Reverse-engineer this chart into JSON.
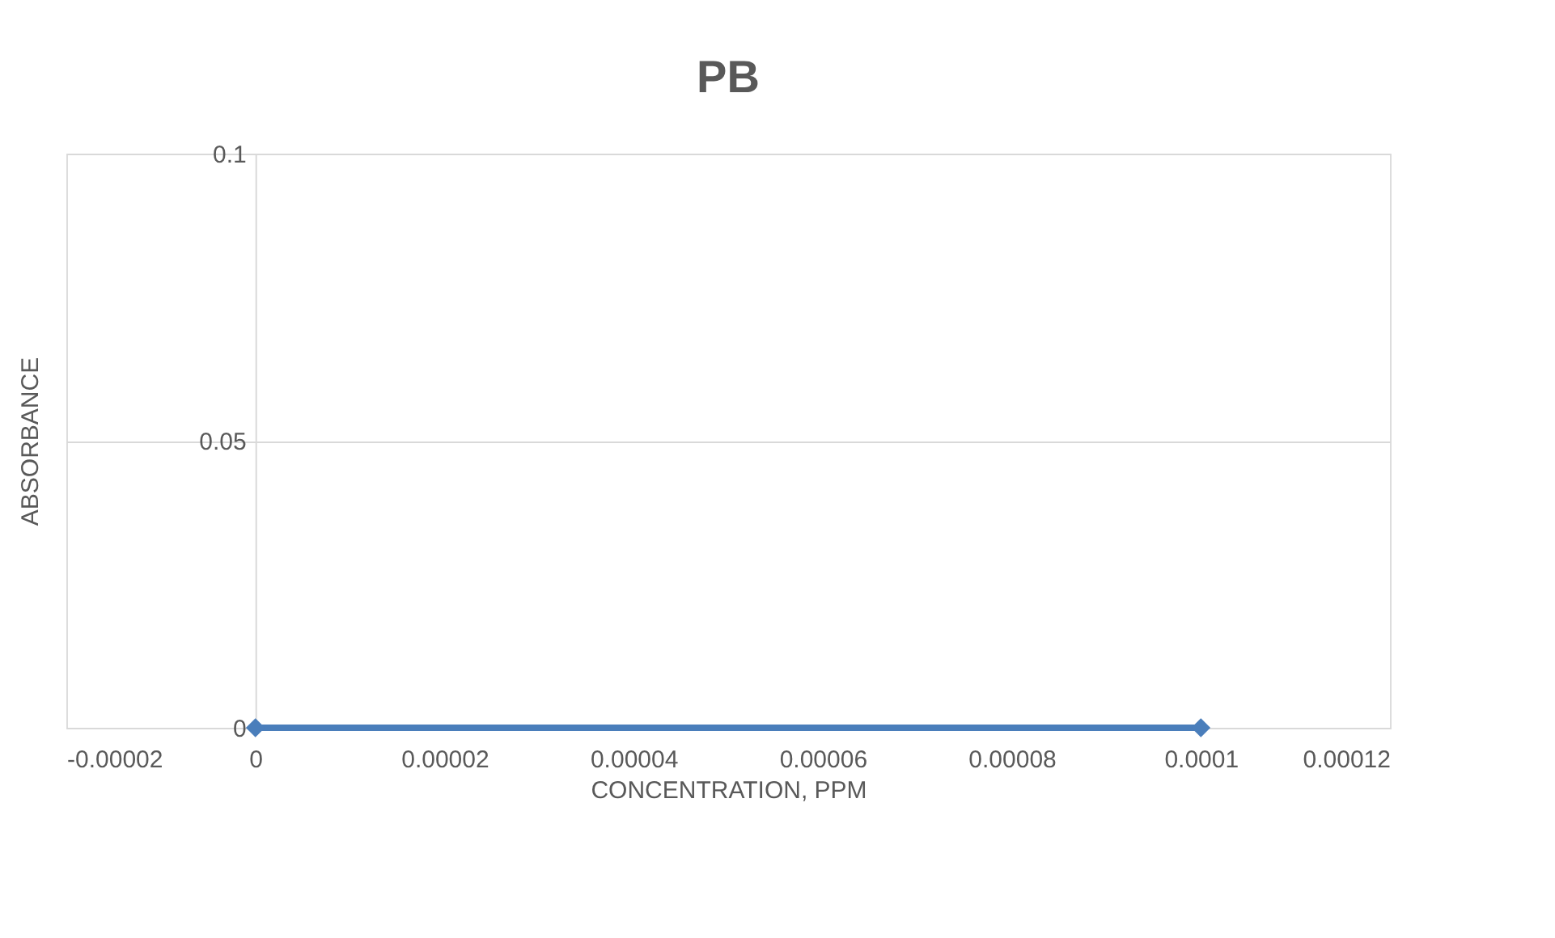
{
  "chart_data": {
    "type": "line",
    "title": "PB",
    "xlabel": "CONCENTRATION, PPM",
    "ylabel": "ABSORBANCE",
    "x": [
      0,
      0.0001
    ],
    "series": [
      {
        "color": "#4a7ebb",
        "values": [
          0,
          0
        ]
      }
    ],
    "xlim": [
      -2e-05,
      0.00012
    ],
    "xticks": [
      {
        "value": -2e-05,
        "label": "-0.00002"
      },
      {
        "value": 0,
        "label": "0"
      },
      {
        "value": 2e-05,
        "label": "0.00002"
      },
      {
        "value": 4e-05,
        "label": "0.00004"
      },
      {
        "value": 6e-05,
        "label": "0.00006"
      },
      {
        "value": 8e-05,
        "label": "0.00008"
      },
      {
        "value": 0.0001,
        "label": "0.0001"
      },
      {
        "value": 0.00012,
        "label": "0.00012"
      }
    ],
    "ylim": [
      0,
      0.1
    ],
    "yticks": [
      0,
      0.05,
      0.1
    ],
    "grid": "y",
    "marker": "diamond",
    "line_style": "solid"
  }
}
